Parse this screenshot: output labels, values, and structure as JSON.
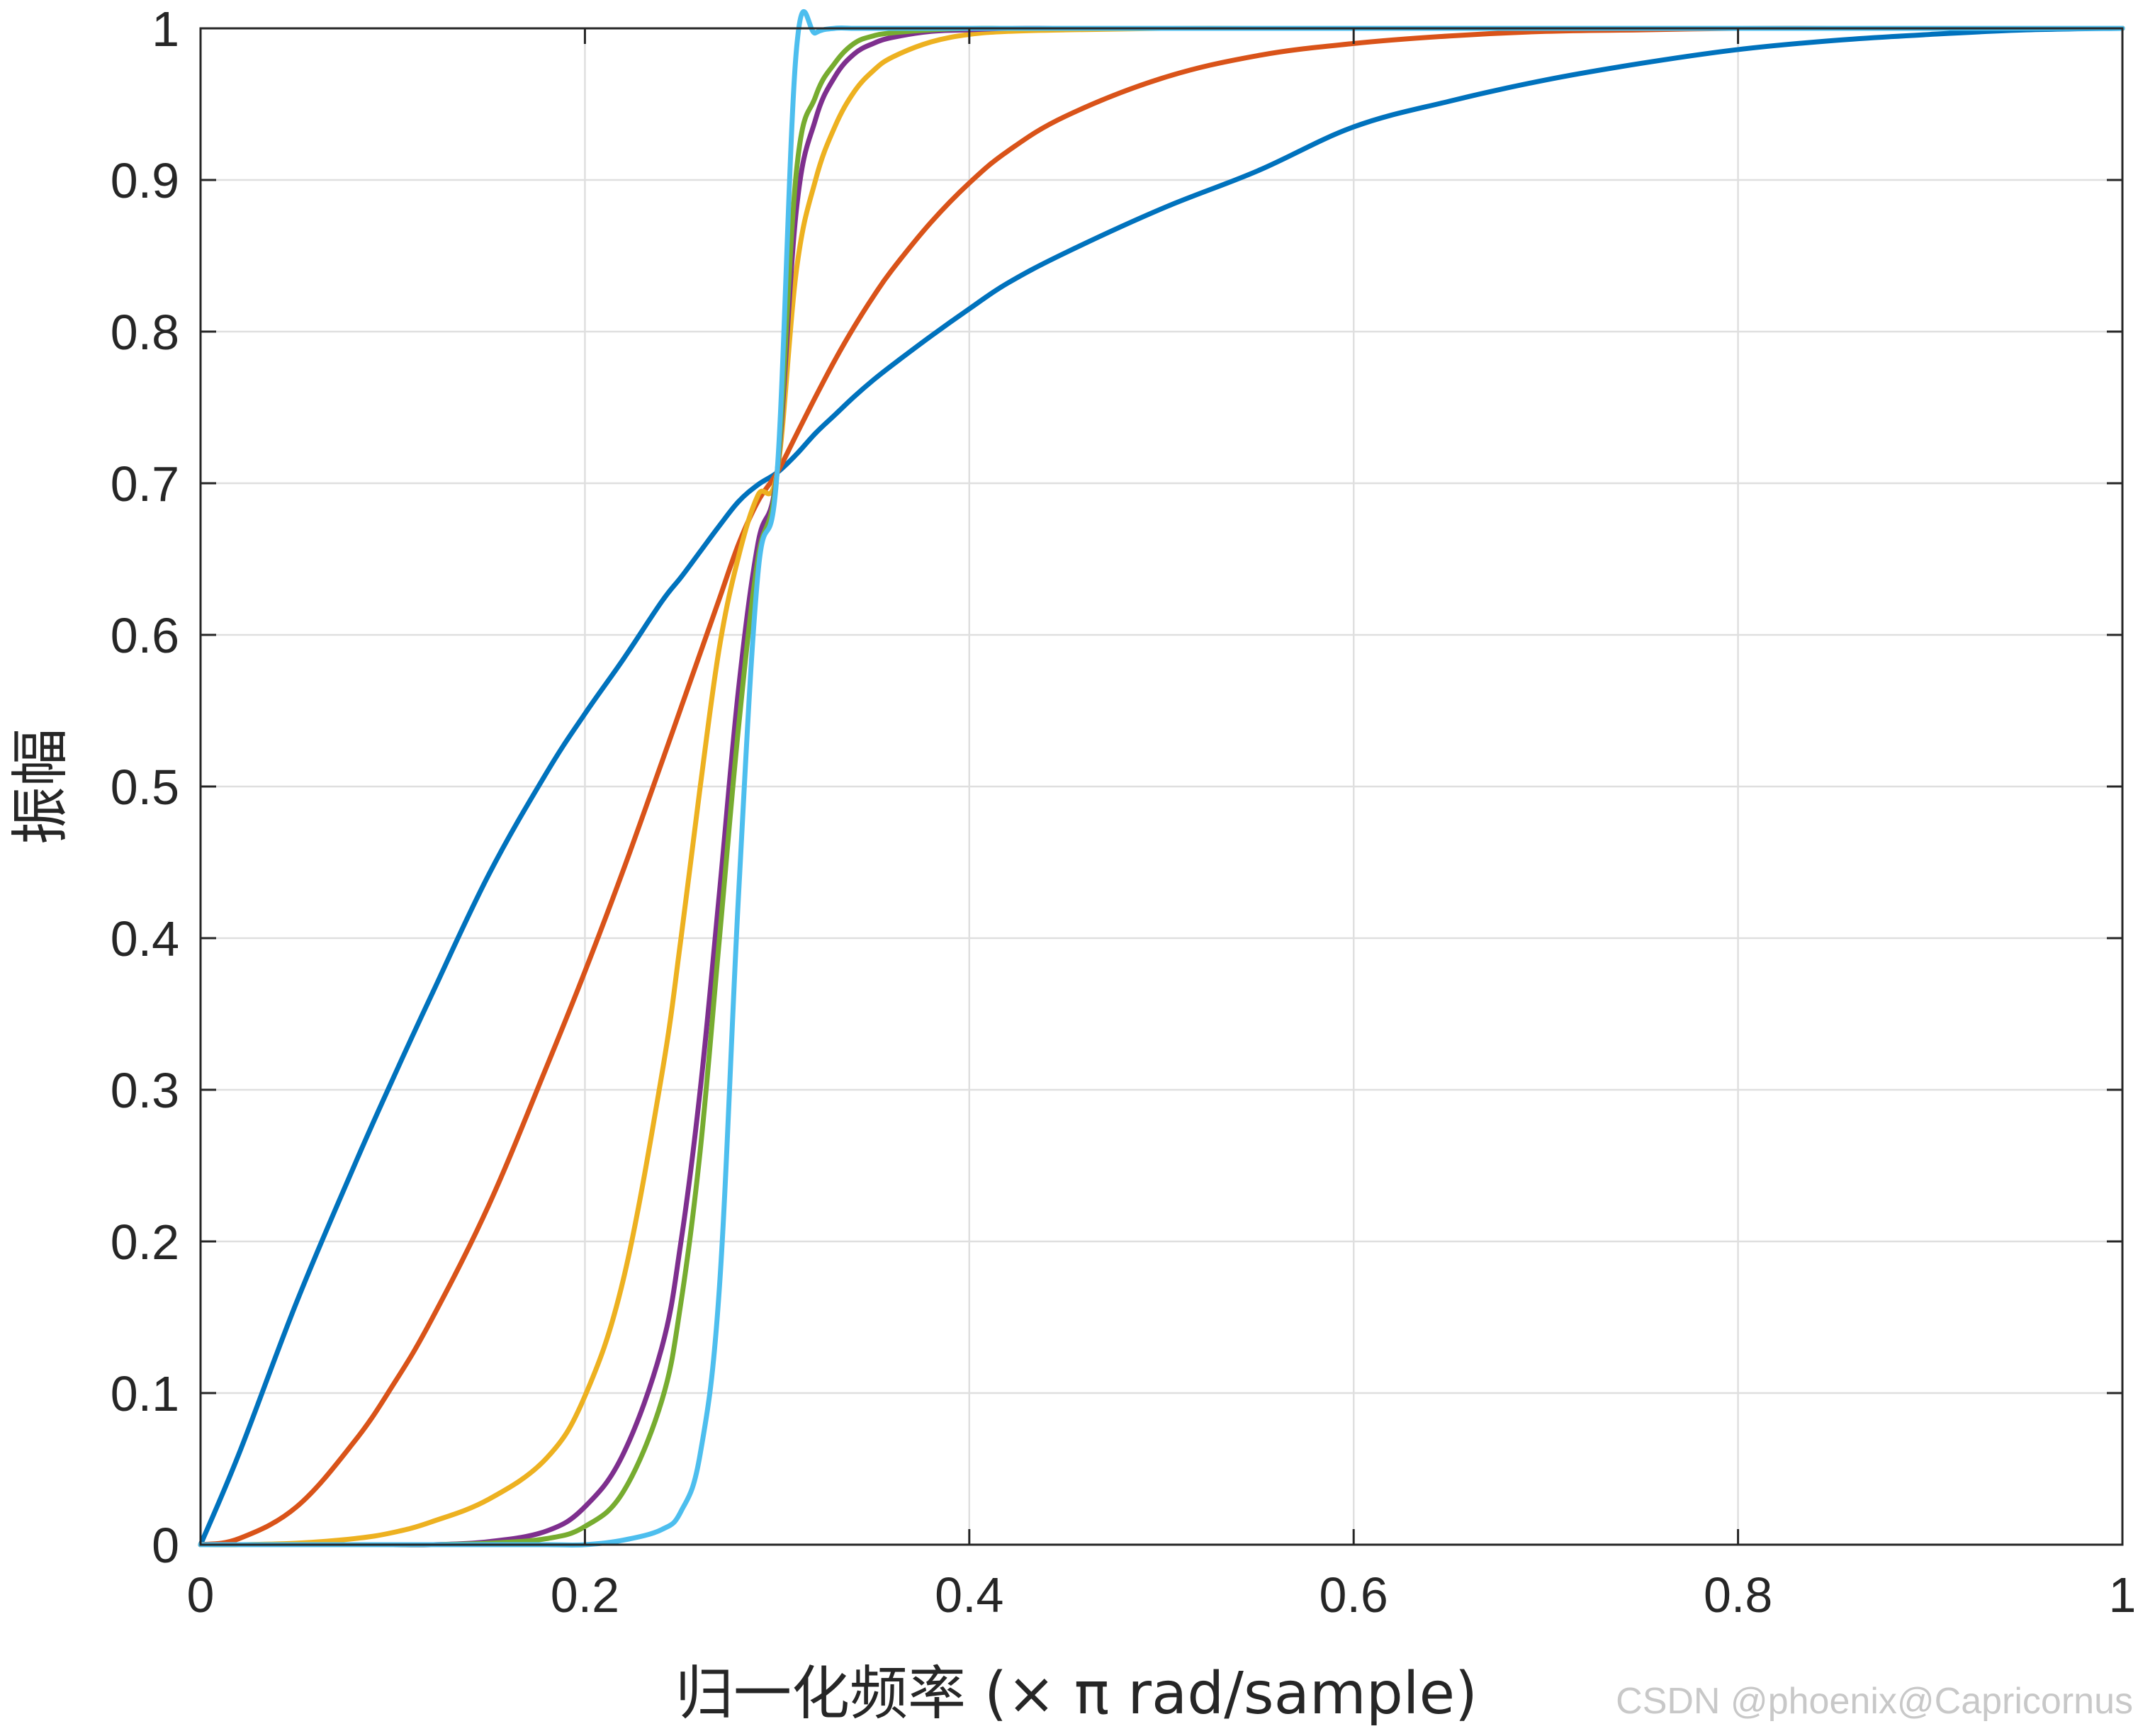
{
  "chart_data": {
    "type": "line",
    "title": "",
    "xlabel": "归一化频率 (× π rad/sample)",
    "ylabel": "振幅",
    "xlim": [
      0,
      1
    ],
    "ylim": [
      0,
      1
    ],
    "xticks": [
      0,
      0.2,
      0.4,
      0.6,
      0.8,
      1
    ],
    "xtick_labels": [
      "0",
      "0.2",
      "0.4",
      "0.6",
      "0.8",
      "1"
    ],
    "yticks": [
      0,
      0.1,
      0.2,
      0.3,
      0.4,
      0.5,
      0.6,
      0.7,
      0.8,
      0.9,
      1
    ],
    "ytick_labels": [
      "0",
      "0.1",
      "0.2",
      "0.3",
      "0.4",
      "0.5",
      "0.6",
      "0.7",
      "0.8",
      "0.9",
      "1"
    ],
    "grid": true,
    "legend": "none",
    "x": [
      0,
      0.02,
      0.05,
      0.08,
      0.1,
      0.12,
      0.15,
      0.18,
      0.2,
      0.22,
      0.24,
      0.25,
      0.26,
      0.27,
      0.28,
      0.29,
      0.3,
      0.31,
      0.32,
      0.33,
      0.34,
      0.35,
      0.36,
      0.38,
      0.4,
      0.42,
      0.45,
      0.5,
      0.55,
      0.6,
      0.65,
      0.7,
      0.75,
      0.8,
      0.85,
      0.9,
      0.95,
      1
    ],
    "series": [
      {
        "color": "#0072BD",
        "values": [
          0,
          0.06,
          0.16,
          0.25,
          0.307,
          0.362,
          0.442,
          0.509,
          0.548,
          0.584,
          0.622,
          0.638,
          0.655,
          0.672,
          0.688,
          0.699,
          0.707,
          0.719,
          0.733,
          0.745,
          0.757,
          0.768,
          0.778,
          0.797,
          0.815,
          0.832,
          0.852,
          0.881,
          0.906,
          0.935,
          0.952,
          0.966,
          0.977,
          0.986,
          0.992,
          0.996,
          0.999,
          1
        ]
      },
      {
        "color": "#D95319",
        "values": [
          0,
          0.004,
          0.025,
          0.068,
          0.105,
          0.148,
          0.224,
          0.315,
          0.378,
          0.445,
          0.516,
          0.552,
          0.588,
          0.624,
          0.66,
          0.688,
          0.707,
          0.732,
          0.757,
          0.781,
          0.803,
          0.823,
          0.841,
          0.872,
          0.898,
          0.919,
          0.942,
          0.967,
          0.982,
          0.99,
          0.995,
          0.998,
          0.999,
          1,
          1,
          1,
          1,
          1
        ]
      },
      {
        "color": "#EDB120",
        "values": [
          0,
          0,
          0.001,
          0.004,
          0.008,
          0.015,
          0.03,
          0.057,
          0.098,
          0.175,
          0.31,
          0.4,
          0.5,
          0.592,
          0.652,
          0.692,
          0.707,
          0.84,
          0.9,
          0.935,
          0.958,
          0.972,
          0.981,
          0.991,
          0.996,
          0.998,
          0.999,
          1,
          1,
          1,
          1,
          1,
          1,
          1,
          1,
          1,
          1,
          1
        ]
      },
      {
        "color": "#7E2F8E",
        "values": [
          0,
          0,
          0,
          0,
          0,
          0,
          0.002,
          0.009,
          0.025,
          0.06,
          0.13,
          0.2,
          0.3,
          0.43,
          0.565,
          0.66,
          0.707,
          0.88,
          0.94,
          0.968,
          0.983,
          0.99,
          0.994,
          0.998,
          0.999,
          1,
          1,
          1,
          1,
          1,
          1,
          1,
          1,
          1,
          1,
          1,
          1,
          1
        ]
      },
      {
        "color": "#77AC30",
        "values": [
          0,
          0,
          0,
          0,
          0,
          0,
          0.001,
          0.004,
          0.012,
          0.035,
          0.095,
          0.16,
          0.26,
          0.4,
          0.54,
          0.65,
          0.707,
          0.905,
          0.955,
          0.977,
          0.99,
          0.995,
          0.997,
          0.999,
          1,
          1,
          1,
          1,
          1,
          1,
          1,
          1,
          1,
          1,
          1,
          1,
          1,
          1
        ]
      },
      {
        "color": "#4DBEEE",
        "values": [
          0,
          0,
          0,
          0,
          0,
          0,
          0,
          0,
          0,
          0.003,
          0.01,
          0.022,
          0.06,
          0.17,
          0.43,
          0.64,
          0.707,
          0.985,
          0.997,
          1,
          1,
          1,
          1,
          1,
          1,
          1,
          1,
          1,
          1,
          1,
          1,
          1,
          1,
          1,
          1,
          1,
          1,
          1
        ]
      }
    ],
    "colors": {
      "axis": "#262626",
      "grid": "#dfdfdf",
      "watermark": "#c8c8c8"
    }
  },
  "watermark": "CSDN @phoenix@Capricornus"
}
